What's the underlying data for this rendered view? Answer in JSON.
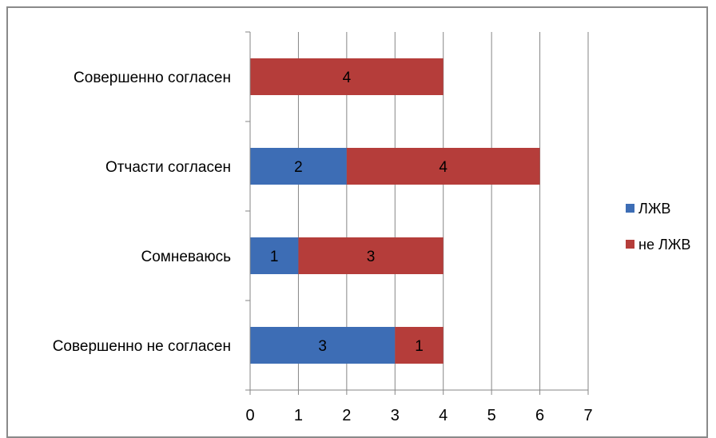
{
  "chart_data": {
    "type": "bar",
    "orientation": "horizontal",
    "stacked": true,
    "categories": [
      "Совершенно не согласен",
      "Сомневаюсь",
      "Отчасти согласен",
      "Совершенно согласен"
    ],
    "series": [
      {
        "name": "ЛЖВ",
        "values": [
          3,
          1,
          2,
          0
        ],
        "color": "#3d6db5"
      },
      {
        "name": "не ЛЖВ",
        "values": [
          1,
          3,
          4,
          4
        ],
        "color": "#b53d3a"
      }
    ],
    "xlim": [
      0,
      7
    ],
    "xticks": [
      0,
      1,
      2,
      3,
      4,
      5,
      6,
      7
    ],
    "grid": true,
    "legend": "right",
    "title": "",
    "xlabel": "",
    "ylabel": ""
  }
}
